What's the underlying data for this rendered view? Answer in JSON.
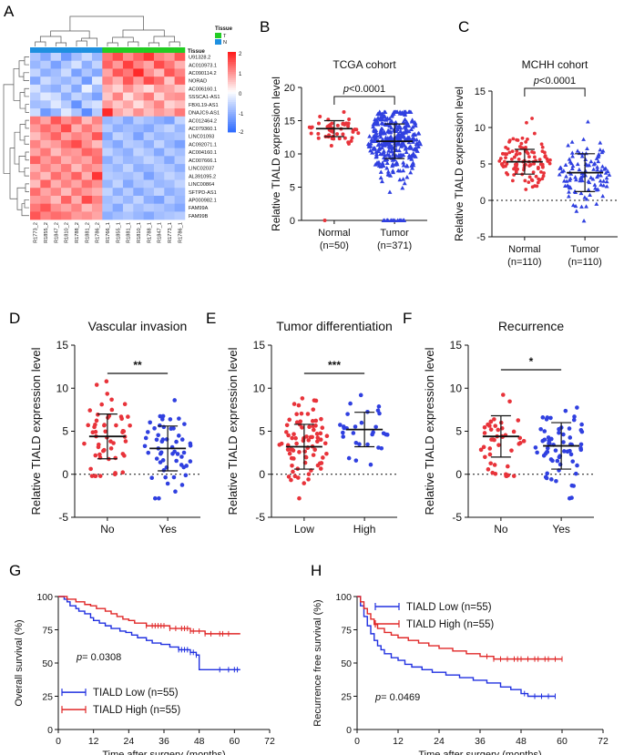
{
  "chart_data": [
    {
      "panel": "A",
      "type": "heatmap",
      "legend_title": "Tissue",
      "legend": [
        {
          "label": "T",
          "color": "#22cc22"
        },
        {
          "label": "N",
          "color": "#1e90e0"
        }
      ],
      "annotation_label": "Tissue",
      "rows": [
        "U91328.2",
        "AC010973.1",
        "AC090114.2",
        "NORAD",
        "AC006160.1",
        "SSSCA1-AS1",
        "FBXL19-AS1",
        "DNAJC9-AS1",
        "AC012464.2",
        "AC079360.1",
        "LINC01093",
        "AC092071.1",
        "AC004160.1",
        "AC007666.1",
        "LINC02037",
        "AL391095.2",
        "LINC00864",
        "SFTPD-AS1",
        "AP000982.1",
        "FAM99A",
        "FAM99B"
      ],
      "columns": [
        "R1773_2",
        "R1855_2",
        "R1847_2",
        "R1810_2",
        "R1788_2",
        "R1881_2",
        "R1786_2",
        "R1766_1",
        "R1855_1",
        "R1881_1",
        "R1810_1",
        "R1788_1",
        "R1847_1",
        "R1773_1",
        "R1786_1"
      ],
      "column_groups": [
        "N",
        "N",
        "N",
        "N",
        "N",
        "N",
        "N",
        "T",
        "T",
        "T",
        "T",
        "T",
        "T",
        "T",
        "T"
      ],
      "scale_ticks": [
        2,
        1,
        0,
        -1,
        -2
      ],
      "values": [
        [
          -0.8,
          -1.2,
          -0.6,
          -1.4,
          -0.9,
          -0.5,
          -1.0,
          1.2,
          1.6,
          1.0,
          1.4,
          1.8,
          1.1,
          0.9,
          1.5
        ],
        [
          -1.0,
          -0.7,
          -1.3,
          -0.8,
          -0.4,
          -1.1,
          -0.6,
          1.4,
          0.9,
          1.7,
          1.1,
          0.8,
          1.6,
          1.2,
          0.7
        ],
        [
          -0.6,
          -1.1,
          -0.9,
          -0.5,
          -1.3,
          -0.8,
          -1.2,
          0.8,
          1.5,
          1.2,
          1.9,
          1.0,
          0.6,
          1.5,
          1.1
        ],
        [
          -1.2,
          -0.5,
          -0.8,
          -1.0,
          -0.7,
          -1.4,
          -0.3,
          1.1,
          0.7,
          1.5,
          0.9,
          1.6,
          1.3,
          0.5,
          1.4
        ],
        [
          -0.4,
          -0.9,
          -1.1,
          -0.6,
          -1.2,
          -0.2,
          -0.9,
          0.7,
          0.4,
          1.0,
          0.6,
          0.3,
          0.9,
          0.8,
          0.5
        ],
        [
          -0.7,
          -0.3,
          -0.5,
          -1.1,
          -0.6,
          -0.9,
          -1.3,
          0.5,
          1.1,
          0.3,
          0.8,
          1.2,
          0.4,
          0.9,
          1.0
        ],
        [
          -0.9,
          -0.8,
          -0.3,
          -0.7,
          -1.5,
          -0.6,
          -0.4,
          0.9,
          0.5,
          0.8,
          0.3,
          0.7,
          1.1,
          0.4,
          0.6
        ],
        [
          -0.5,
          -1.4,
          -1.0,
          -0.3,
          -0.8,
          -1.6,
          -0.7,
          1.9,
          0.8,
          0.5,
          1.0,
          0.6,
          0.9,
          0.7,
          1.2
        ],
        [
          1.2,
          0.8,
          1.5,
          1.0,
          1.3,
          0.6,
          1.1,
          -1.0,
          -0.8,
          -1.2,
          -0.7,
          -0.9,
          -1.1,
          -1.3,
          -0.6
        ],
        [
          0.9,
          1.3,
          1.0,
          1.6,
          0.7,
          1.2,
          0.8,
          -0.7,
          -1.1,
          -0.9,
          -1.0,
          -1.2,
          -0.8,
          -0.6,
          -1.0
        ],
        [
          0.6,
          1.0,
          1.4,
          0.8,
          1.1,
          0.9,
          1.5,
          -1.2,
          -0.6,
          -0.8,
          -1.3,
          -0.7,
          -1.0,
          -0.9,
          -0.8
        ],
        [
          1.1,
          0.7,
          0.9,
          1.3,
          1.6,
          1.0,
          0.6,
          -0.9,
          -1.2,
          -0.7,
          -0.8,
          -1.1,
          -0.6,
          -1.0,
          -1.3
        ],
        [
          0.8,
          1.2,
          0.6,
          1.0,
          0.9,
          1.4,
          1.2,
          -0.6,
          -0.9,
          -1.1,
          -0.6,
          -0.8,
          -1.2,
          -0.7,
          -0.9
        ],
        [
          1.4,
          0.9,
          1.2,
          0.7,
          1.0,
          0.8,
          1.3,
          -1.1,
          -0.7,
          -1.0,
          -0.9,
          -0.6,
          -0.8,
          -1.2,
          -0.7
        ],
        [
          0.7,
          1.1,
          0.8,
          1.2,
          0.6,
          1.1,
          0.9,
          -0.8,
          -1.0,
          -0.6,
          -1.1,
          -1.0,
          -0.7,
          -0.8,
          -1.1
        ],
        [
          1.0,
          0.6,
          1.3,
          0.9,
          1.4,
          0.7,
          1.8,
          -0.7,
          -0.8,
          -0.9,
          -0.7,
          -1.3,
          -0.9,
          -0.6,
          -0.8
        ],
        [
          0.6,
          1.4,
          0.7,
          1.1,
          0.8,
          1.3,
          1.0,
          -1.0,
          -0.6,
          -1.2,
          -0.8,
          -0.7,
          -1.0,
          -0.9,
          -0.6
        ],
        [
          1.3,
          0.8,
          1.1,
          0.6,
          1.2,
          0.9,
          0.7,
          -0.6,
          -1.1,
          -0.7,
          -1.2,
          -0.9,
          -0.6,
          -1.1,
          -0.9
        ],
        [
          0.9,
          1.0,
          0.6,
          1.4,
          0.7,
          1.6,
          1.1,
          -0.9,
          -0.7,
          -1.0,
          -0.6,
          -1.1,
          -1.3,
          -0.7,
          -1.0
        ],
        [
          1.2,
          1.5,
          1.0,
          0.8,
          1.1,
          0.6,
          0.9,
          -0.8,
          -1.2,
          -0.6,
          -0.9,
          -0.7,
          -0.8,
          -1.0,
          -1.2
        ],
        [
          1.5,
          1.1,
          1.3,
          1.2,
          0.9,
          1.0,
          0.8,
          -1.1,
          -0.9,
          -0.8,
          -1.0,
          -1.2,
          -0.9,
          -0.8,
          -0.7
        ]
      ]
    },
    {
      "panel": "B",
      "type": "scatter",
      "title": "TCGA cohort",
      "ylabel": "Relative TIALD expression level",
      "ylim": [
        0,
        20
      ],
      "yticks": [
        0,
        5,
        10,
        15,
        20
      ],
      "groups": [
        {
          "label": "Normal",
          "sub": "(n=50)",
          "n": 50,
          "mean": 13.8,
          "sd": 1.2,
          "min": 0,
          "max": 16.5,
          "color": "#e8333a",
          "marker": "circle"
        },
        {
          "label": "Tumor",
          "sub": "(n=371)",
          "n": 371,
          "mean": 11.9,
          "sd": 2.6,
          "min": 0,
          "max": 16.3,
          "color": "#3040e0",
          "marker": "triangle"
        }
      ],
      "zero_line": false,
      "comparison": {
        "text": "p<0.0001",
        "italic_p": true
      }
    },
    {
      "panel": "C",
      "type": "scatter",
      "title": "MCHH cohort",
      "ylabel": "Relative TIALD expression level",
      "ylim": [
        -5,
        15
      ],
      "yticks": [
        -5,
        0,
        5,
        10,
        15
      ],
      "groups": [
        {
          "label": "Normal",
          "sub": "(n=110)",
          "n": 110,
          "mean": 5.3,
          "sd": 1.7,
          "min": 1.5,
          "max": 13.5,
          "color": "#e8333a",
          "marker": "circle"
        },
        {
          "label": "Tumor",
          "sub": "(n=110)",
          "n": 110,
          "mean": 3.8,
          "sd": 2.6,
          "min": -2.8,
          "max": 10.8,
          "color": "#3040e0",
          "marker": "triangle"
        }
      ],
      "zero_line": true,
      "comparison": {
        "text": "p<0.0001",
        "italic_p": true
      }
    },
    {
      "panel": "D",
      "type": "scatter",
      "title": "Vascular invasion",
      "ylabel": "Relative TIALD expression level",
      "ylim": [
        -5,
        15
      ],
      "yticks": [
        -5,
        0,
        5,
        10,
        15
      ],
      "groups": [
        {
          "label": "No",
          "sub": "",
          "n": 55,
          "mean": 4.4,
          "sd": 2.6,
          "min": -0.2,
          "max": 10.8,
          "color": "#e8333a",
          "marker": "circle"
        },
        {
          "label": "Yes",
          "sub": "",
          "n": 55,
          "mean": 3.0,
          "sd": 2.6,
          "min": -2.8,
          "max": 8.6,
          "color": "#3040e0",
          "marker": "circle"
        }
      ],
      "zero_line": true,
      "comparison": {
        "text": "**",
        "italic_p": false
      }
    },
    {
      "panel": "E",
      "type": "scatter",
      "title": "Tumor differentiation",
      "ylabel": "Relative TIALD expression level",
      "ylim": [
        -5,
        15
      ],
      "yticks": [
        -5,
        0,
        5,
        10,
        15
      ],
      "groups": [
        {
          "label": "Low",
          "sub": "",
          "n": 80,
          "mean": 3.2,
          "sd": 2.6,
          "min": -2.8,
          "max": 9.5,
          "color": "#e8333a",
          "marker": "circle"
        },
        {
          "label": "High",
          "sub": "",
          "n": 30,
          "mean": 5.2,
          "sd": 2.0,
          "min": 0.5,
          "max": 10.9,
          "color": "#3040e0",
          "marker": "circle"
        }
      ],
      "zero_line": true,
      "comparison": {
        "text": "***",
        "italic_p": false
      }
    },
    {
      "panel": "F",
      "type": "scatter",
      "title": "Recurrence",
      "ylabel": "Relative TIALD expression level",
      "ylim": [
        -5,
        15
      ],
      "yticks": [
        -5,
        0,
        5,
        10,
        15
      ],
      "groups": [
        {
          "label": "No",
          "sub": "",
          "n": 45,
          "mean": 4.4,
          "sd": 2.4,
          "min": -0.2,
          "max": 10.8,
          "color": "#e8333a",
          "marker": "circle"
        },
        {
          "label": "Yes",
          "sub": "",
          "n": 65,
          "mean": 3.3,
          "sd": 2.7,
          "min": -2.8,
          "max": 8.7,
          "color": "#3040e0",
          "marker": "circle"
        }
      ],
      "zero_line": true,
      "comparison": {
        "text": "*",
        "italic_p": false
      }
    },
    {
      "panel": "G",
      "type": "line",
      "subtype": "kaplan-meier",
      "ylabel": "Overall survival (%)",
      "xlabel": "Time after surgery (months)",
      "xlim": [
        0,
        72
      ],
      "xticks": [
        0,
        12,
        24,
        36,
        48,
        60,
        72
      ],
      "ylim": [
        0,
        100
      ],
      "yticks": [
        0,
        25,
        50,
        75,
        100
      ],
      "pvalue_prefix": "p",
      "pvalue_text": "= 0.0308",
      "legend_position": "bottom-left",
      "series": [
        {
          "name": "TIALD Low (n=55)",
          "color": "#2030e0",
          "steps": [
            [
              0,
              100
            ],
            [
              2,
              98
            ],
            [
              3,
              96
            ],
            [
              4,
              93
            ],
            [
              6,
              91
            ],
            [
              7,
              89
            ],
            [
              9,
              87
            ],
            [
              11,
              84
            ],
            [
              12,
              82
            ],
            [
              14,
              80
            ],
            [
              16,
              78
            ],
            [
              18,
              76
            ],
            [
              21,
              74
            ],
            [
              23,
              73
            ],
            [
              25,
              71
            ],
            [
              27,
              69
            ],
            [
              30,
              67
            ],
            [
              32,
              65
            ],
            [
              35,
              64
            ],
            [
              38,
              62
            ],
            [
              41,
              60
            ],
            [
              45,
              58
            ],
            [
              47,
              56
            ],
            [
              48,
              45
            ],
            [
              62,
              45
            ]
          ],
          "censor": [
            41,
            42,
            43,
            44,
            45,
            46,
            47,
            55,
            58,
            60,
            61
          ]
        },
        {
          "name": "TIALD High (n=55)",
          "color": "#e02828",
          "steps": [
            [
              0,
              100
            ],
            [
              3,
              98
            ],
            [
              6,
              96
            ],
            [
              9,
              94
            ],
            [
              11,
              93
            ],
            [
              13,
              91
            ],
            [
              16,
              89
            ],
            [
              18,
              87
            ],
            [
              20,
              85
            ],
            [
              22,
              83
            ],
            [
              24,
              82
            ],
            [
              26,
              80
            ],
            [
              30,
              78
            ],
            [
              38,
              76
            ],
            [
              45,
              74
            ],
            [
              50,
              72
            ],
            [
              62,
              72
            ]
          ],
          "censor": [
            30,
            32,
            33,
            34,
            35,
            36,
            38,
            40,
            42,
            43,
            44,
            45,
            46,
            48,
            50,
            52,
            55,
            56,
            58
          ]
        }
      ]
    },
    {
      "panel": "H",
      "type": "line",
      "subtype": "kaplan-meier",
      "ylabel": "Recurrence free survival (%)",
      "xlabel": "Time after surgery (months)",
      "xlim": [
        0,
        72
      ],
      "xticks": [
        0,
        12,
        24,
        36,
        48,
        60,
        72
      ],
      "ylim": [
        0,
        100
      ],
      "yticks": [
        0,
        25,
        50,
        75,
        100
      ],
      "pvalue_prefix": "p",
      "pvalue_text": "= 0.0469",
      "legend_position": "top-right",
      "series": [
        {
          "name": "TIALD Low (n=55)",
          "color": "#2030e0",
          "steps": [
            [
              0,
              100
            ],
            [
              1,
              93
            ],
            [
              2,
              85
            ],
            [
              3,
              78
            ],
            [
              4,
              72
            ],
            [
              5,
              67
            ],
            [
              6,
              63
            ],
            [
              7,
              60
            ],
            [
              8,
              57
            ],
            [
              10,
              54
            ],
            [
              12,
              52
            ],
            [
              14,
              49
            ],
            [
              16,
              47
            ],
            [
              19,
              45
            ],
            [
              22,
              43
            ],
            [
              26,
              41
            ],
            [
              30,
              39
            ],
            [
              34,
              37
            ],
            [
              38,
              35
            ],
            [
              42,
              32
            ],
            [
              45,
              30
            ],
            [
              48,
              27
            ],
            [
              50,
              25
            ],
            [
              58,
              25
            ]
          ],
          "censor": [
            49,
            52,
            54,
            56,
            58
          ]
        },
        {
          "name": "TIALD High (n=55)",
          "color": "#e02828",
          "steps": [
            [
              0,
              100
            ],
            [
              1,
              96
            ],
            [
              2,
              91
            ],
            [
              3,
              87
            ],
            [
              4,
              83
            ],
            [
              5,
              79
            ],
            [
              6,
              76
            ],
            [
              8,
              73
            ],
            [
              10,
              71
            ],
            [
              12,
              69
            ],
            [
              15,
              67
            ],
            [
              18,
              65
            ],
            [
              21,
              63
            ],
            [
              24,
              61
            ],
            [
              28,
              59
            ],
            [
              32,
              57
            ],
            [
              36,
              55
            ],
            [
              40,
              53
            ],
            [
              60,
              53
            ]
          ],
          "censor": [
            38,
            40,
            42,
            44,
            46,
            47,
            48,
            50,
            52,
            53,
            55,
            56,
            58,
            60
          ]
        }
      ]
    }
  ],
  "panel_letters": {
    "A": "A",
    "B": "B",
    "C": "C",
    "D": "D",
    "E": "E",
    "F": "F",
    "G": "G",
    "H": "H"
  }
}
